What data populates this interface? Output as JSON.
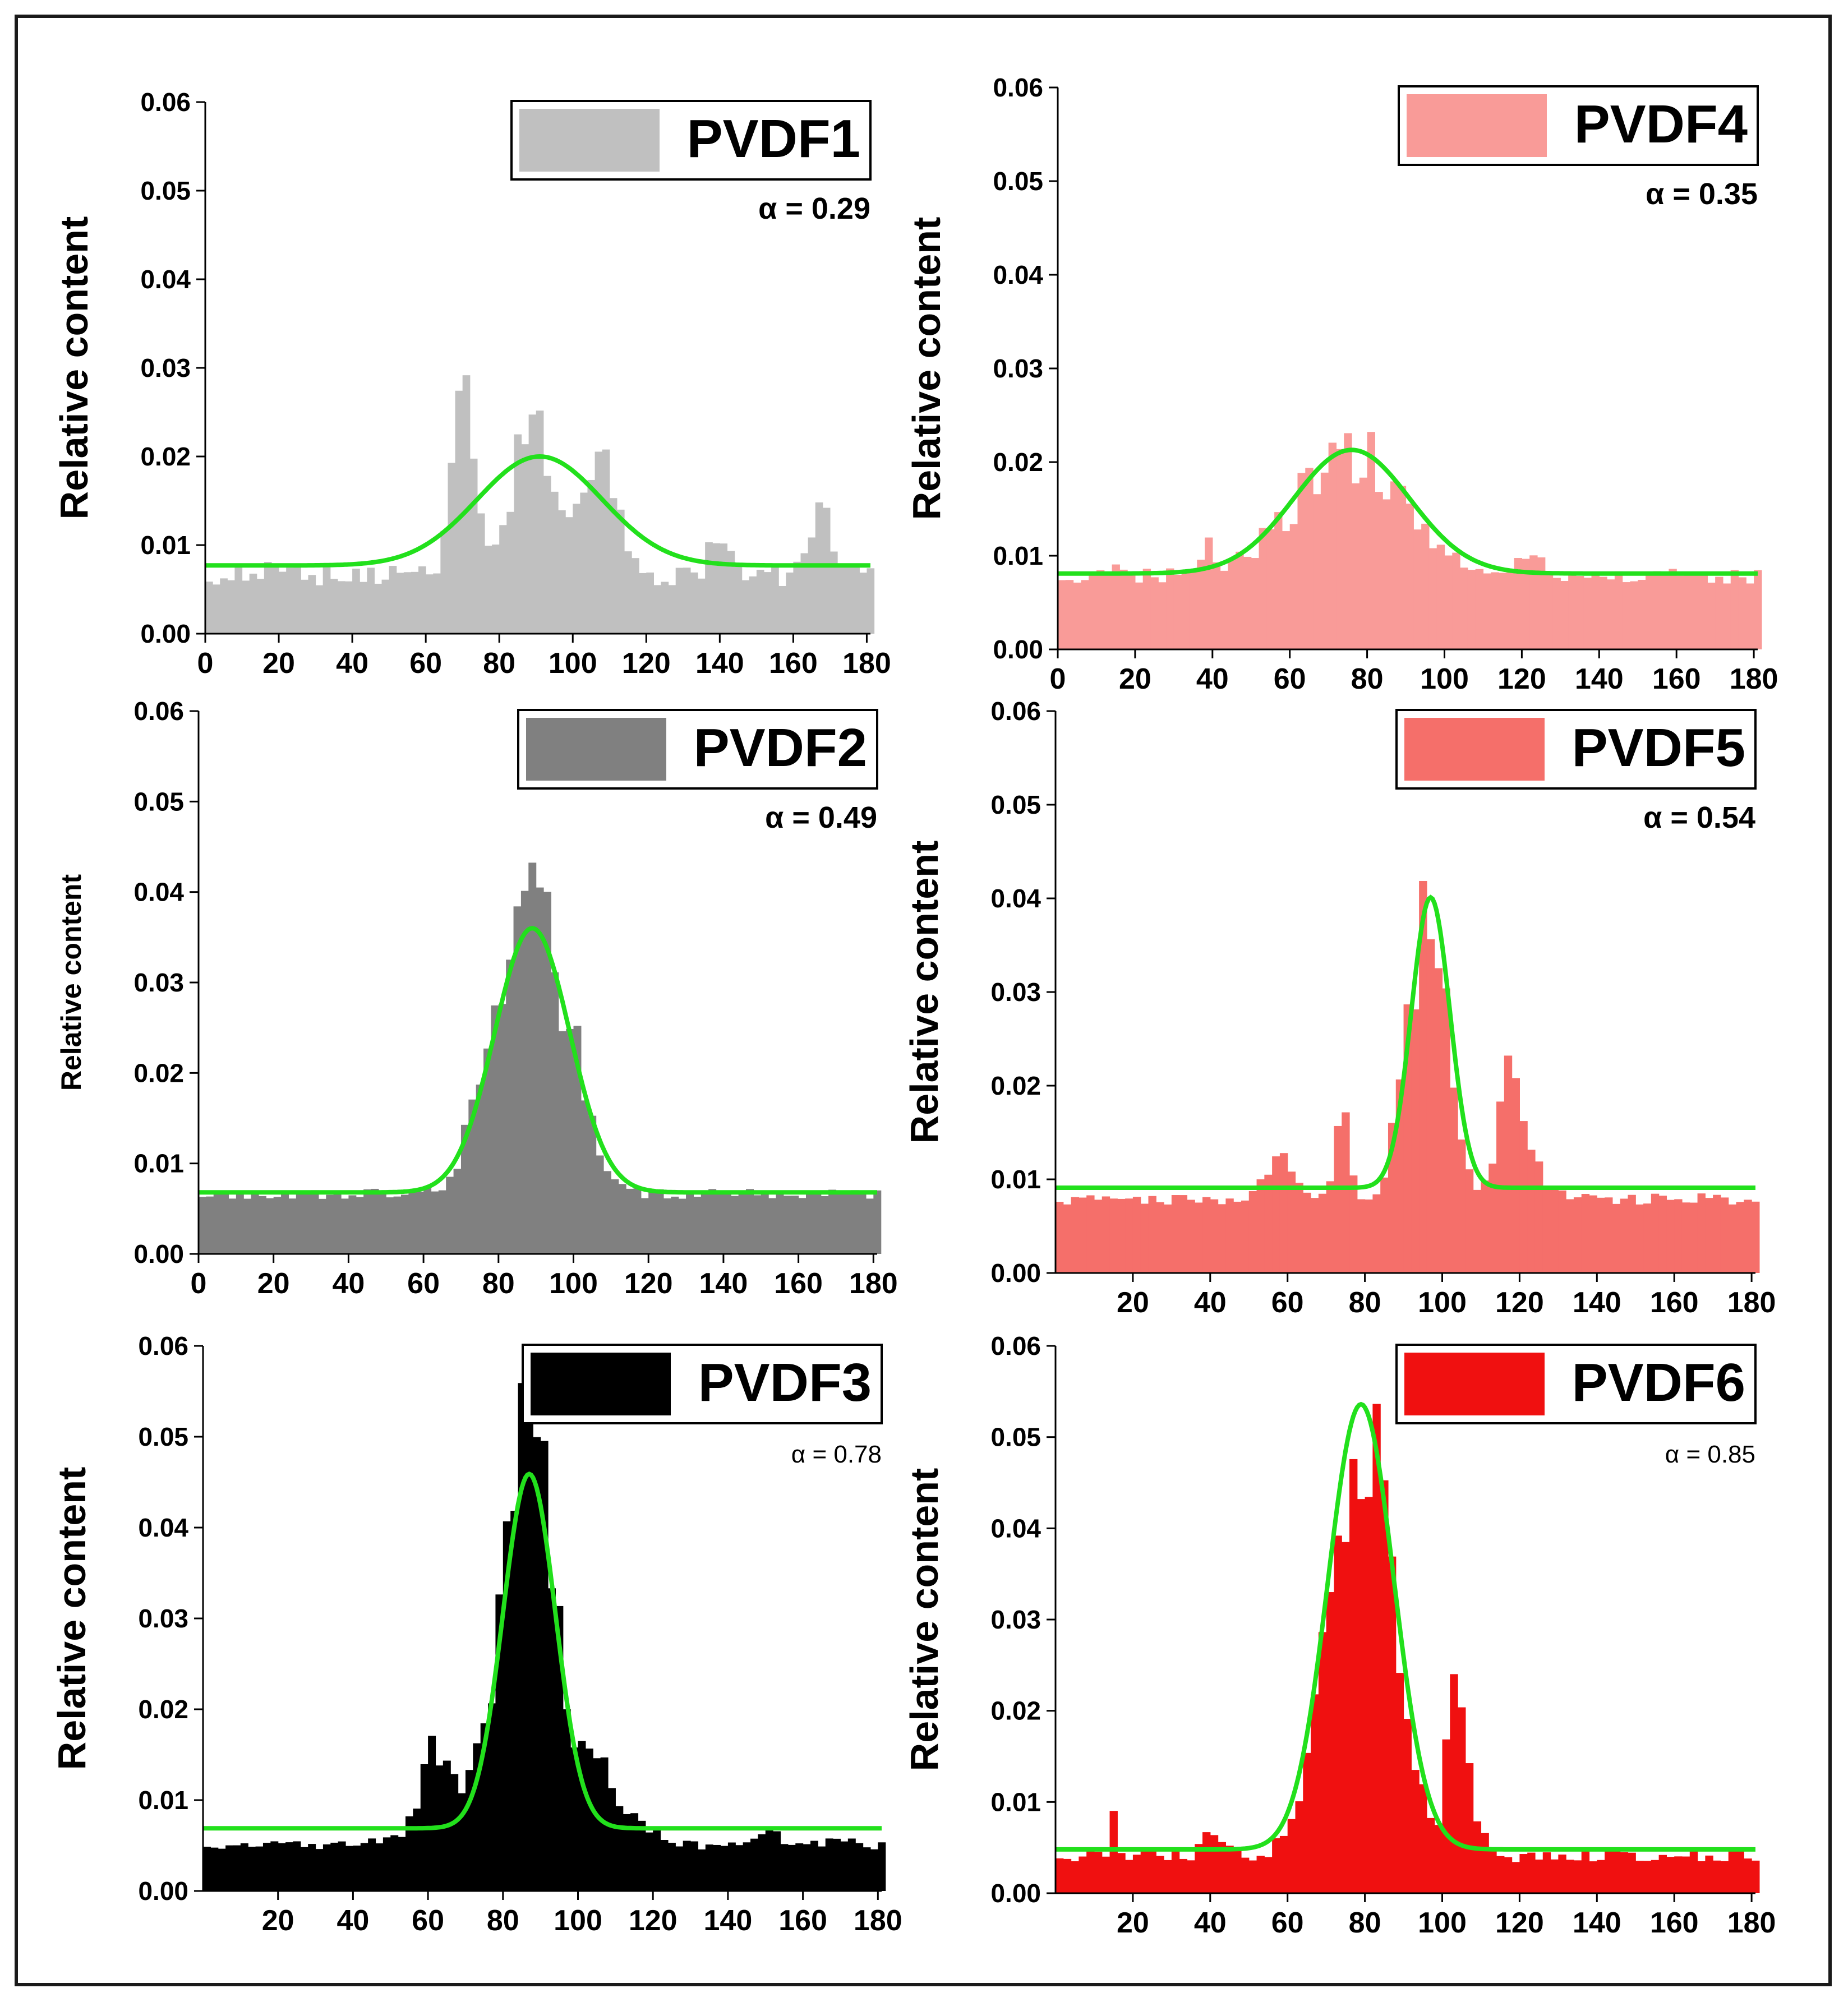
{
  "figure": {
    "y_axis_label": "Relative content",
    "fit_color": "#22e01c",
    "panels": [
      {
        "name": "PVDF1",
        "alpha_label": "α = 0.29",
        "color": "#c0c0c0",
        "xlim": [
          0,
          181
        ],
        "ylim": [
          0,
          0.06
        ],
        "xticks": [
          0,
          20,
          40,
          60,
          80,
          100,
          120,
          140,
          160,
          180
        ],
        "yticks": [
          "0.00",
          "0.01",
          "0.02",
          "0.03",
          "0.04",
          "0.05",
          "0.06"
        ],
        "fit": {
          "y0": 0.0077,
          "amp": 0.0123,
          "mu": 91,
          "sigma": 17
        },
        "histogram": {
          "bin_width": 2,
          "base": 0.0065,
          "noise": 0.0012,
          "seed": 11,
          "peaks": [
            [
              70,
              0.02,
              3
            ],
            [
              88,
              0.012,
              4
            ],
            [
              108,
              0.015,
              4
            ],
            [
              93,
              0.006,
              10
            ],
            [
              167,
              0.007,
              3
            ],
            [
              140,
              0.004,
              3
            ],
            [
              18,
              0.003,
              2
            ]
          ]
        }
      },
      {
        "name": "PVDF4",
        "alpha_label": "α = 0.35",
        "color": "#f99b98",
        "xlim": [
          0,
          181
        ],
        "ylim": [
          0,
          0.06
        ],
        "xticks": [
          0,
          20,
          40,
          60,
          80,
          100,
          120,
          140,
          160,
          180
        ],
        "yticks": [
          "0.00",
          "0.01",
          "0.02",
          "0.03",
          "0.04",
          "0.05",
          "0.06"
        ],
        "fit": {
          "y0": 0.0081,
          "amp": 0.0132,
          "mu": 76,
          "sigma": 15
        },
        "histogram": {
          "bin_width": 2,
          "base": 0.0078,
          "noise": 0.0008,
          "seed": 23,
          "peaks": [
            [
              75,
              0.013,
              14
            ],
            [
              72,
              0.005,
              2
            ],
            [
              38,
              0.003,
              2
            ],
            [
              122,
              0.002,
              4
            ],
            [
              16,
              0.0015,
              2
            ]
          ]
        }
      },
      {
        "name": "PVDF2",
        "alpha_label": "α = 0.49",
        "color": "#808080",
        "xlim": [
          0,
          181
        ],
        "ylim": [
          0,
          0.06
        ],
        "xticks": [
          0,
          20,
          40,
          60,
          80,
          100,
          120,
          140,
          160,
          180
        ],
        "yticks": [
          "0.00",
          "0.01",
          "0.02",
          "0.03",
          "0.04",
          "0.05",
          "0.06"
        ],
        "fit": {
          "y0": 0.0068,
          "amp": 0.0292,
          "mu": 89,
          "sigma": 10
        },
        "histogram": {
          "bin_width": 2,
          "base": 0.0066,
          "noise": 0.0006,
          "seed": 37,
          "peaks": [
            [
              89,
              0.028,
              9
            ],
            [
              92,
              0.012,
              2
            ],
            [
              76,
              0.006,
              4
            ],
            [
              101,
              0.006,
              3
            ]
          ]
        }
      },
      {
        "name": "PVDF5",
        "alpha_label": "α = 0.54",
        "color": "#f56f6a",
        "xlim": [
          0,
          181
        ],
        "ylim": [
          0,
          0.06
        ],
        "xticks": [
          20,
          40,
          60,
          80,
          100,
          120,
          140,
          160,
          180
        ],
        "yticks": [
          "0.00",
          "0.01",
          "0.02",
          "0.03",
          "0.04",
          "0.05",
          "0.06"
        ],
        "fit": {
          "y0": 0.0091,
          "amp": 0.031,
          "mu": 97,
          "sigma": 5
        },
        "histogram": {
          "bin_width": 2,
          "base": 0.0079,
          "noise": 0.0006,
          "seed": 41,
          "peaks": [
            [
              96,
              0.031,
              5
            ],
            [
              118,
              0.014,
              3
            ],
            [
              58,
              0.005,
              3
            ],
            [
              74,
              0.009,
              2
            ],
            [
              125,
              0.002,
              4
            ]
          ]
        }
      },
      {
        "name": "PVDF3",
        "alpha_label": "α = 0.78",
        "color": "#000000",
        "xlim": [
          0,
          181
        ],
        "ylim": [
          0,
          0.06
        ],
        "xticks": [
          20,
          40,
          60,
          80,
          100,
          120,
          140,
          160,
          180
        ],
        "yticks": [
          "0.00",
          "0.01",
          "0.02",
          "0.03",
          "0.04",
          "0.05",
          "0.06"
        ],
        "fit": {
          "y0": 0.0069,
          "amp": 0.039,
          "mu": 87,
          "sigma": 7
        },
        "histogram": {
          "bin_width": 2,
          "base": 0.0052,
          "noise": 0.0007,
          "seed": 53,
          "peaks": [
            [
              87,
              0.042,
              6
            ],
            [
              62,
              0.009,
              4
            ],
            [
              80,
              0.008,
              10
            ],
            [
              104,
              0.008,
              6
            ],
            [
              118,
              0.002,
              3
            ],
            [
              152,
              0.0015,
              2
            ]
          ]
        }
      },
      {
        "name": "PVDF6",
        "alpha_label": "α = 0.85",
        "color": "#f01010",
        "xlim": [
          0,
          181
        ],
        "ylim": [
          0,
          0.06
        ],
        "xticks": [
          20,
          40,
          60,
          80,
          100,
          120,
          140,
          160,
          180
        ],
        "yticks": [
          "0.00",
          "0.01",
          "0.02",
          "0.03",
          "0.04",
          "0.05",
          "0.06"
        ],
        "fit": {
          "y0": 0.0048,
          "amp": 0.0488,
          "mu": 79,
          "sigma": 8.5
        },
        "histogram": {
          "bin_width": 2,
          "base": 0.0042,
          "noise": 0.0008,
          "seed": 67,
          "peaks": [
            [
              79,
              0.048,
              8
            ],
            [
              103,
              0.018,
              2
            ],
            [
              108,
              0.006,
              2
            ],
            [
              15,
              0.005,
              1
            ],
            [
              41,
              0.003,
              2
            ]
          ]
        }
      }
    ]
  }
}
